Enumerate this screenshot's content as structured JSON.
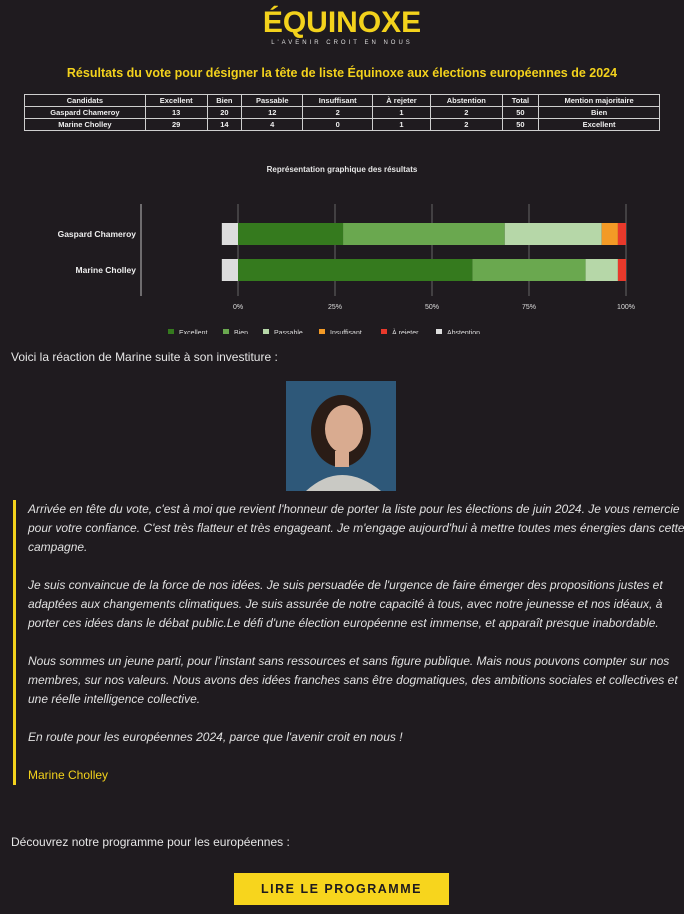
{
  "logo": {
    "name": "ÉQUINOXE",
    "tagline": "L'AVENIR CROIT EN NOUS"
  },
  "title": "Résultats du vote pour désigner la tête de liste Équinoxe aux élections européennes de 2024",
  "table": {
    "headers": [
      "Candidats",
      "Excellent",
      "Bien",
      "Passable",
      "Insuffisant",
      "À rejeter",
      "Abstention",
      "Total",
      "Mention majoritaire"
    ],
    "rows": [
      [
        "Gaspard Chameroy",
        "13",
        "20",
        "12",
        "2",
        "1",
        "2",
        "50",
        "Bien"
      ],
      [
        "Marine Cholley",
        "29",
        "14",
        "4",
        "0",
        "1",
        "2",
        "50",
        "Excellent"
      ]
    ]
  },
  "chart_data": {
    "type": "bar",
    "orientation": "horizontal",
    "stacked": true,
    "title": "Représentation graphique des résultats",
    "categories": [
      "Gaspard Chameroy",
      "Marine Cholley"
    ],
    "series": [
      {
        "name": "Excellent",
        "values": [
          13,
          29
        ],
        "color": "#357a1e"
      },
      {
        "name": "Bien",
        "values": [
          20,
          14
        ],
        "color": "#6aa84f"
      },
      {
        "name": "Passable",
        "values": [
          12,
          4
        ],
        "color": "#b6d7a8"
      },
      {
        "name": "Insuffisant",
        "values": [
          2,
          0
        ],
        "color": "#f39a26"
      },
      {
        "name": "À rejeter",
        "values": [
          1,
          1
        ],
        "color": "#e8392b"
      },
      {
        "name": "Abstention",
        "values": [
          2,
          2
        ],
        "color": "#dddddd"
      }
    ],
    "xticks": [
      "0%",
      "25%",
      "50%",
      "75%",
      "100%"
    ],
    "xlim": [
      0,
      100
    ],
    "grid": true,
    "legend": "bottom"
  },
  "intro": "Voici la réaction de Marine suite à son investiture :",
  "quote": [
    "Arrivée en tête du vote, c'est à moi que revient l'honneur de porter la liste pour les élections de juin 2024. Je vous remercie pour votre confiance. C'est très flatteur et très engageant. Je m'engage aujourd'hui à mettre toutes mes énergies dans cette campagne.",
    "Je suis convaincue de la force de nos idées. Je suis persuadée de l'urgence de faire émerger des propositions justes et adaptées aux changements climatiques. Je suis assurée de notre capacité à tous, avec notre jeunesse et nos idéaux, à porter ces idées dans le débat public.Le défi d'une élection européenne est immense, et apparaît presque inabordable.",
    "Nous sommes un jeune parti, pour l'instant sans ressources et sans figure publique. Mais nous pouvons compter sur nos membres, sur nos valeurs. Nous avons des idées franches sans être dogmatiques, des ambitions sociales et collectives et une réelle intelligence collective.",
    "En route pour les européennes 2024, parce que l'avenir croit en nous !"
  ],
  "signature": "Marine Cholley",
  "discover": "Découvrez notre programme pour les européennes :",
  "button": "LIRE LE PROGRAMME"
}
